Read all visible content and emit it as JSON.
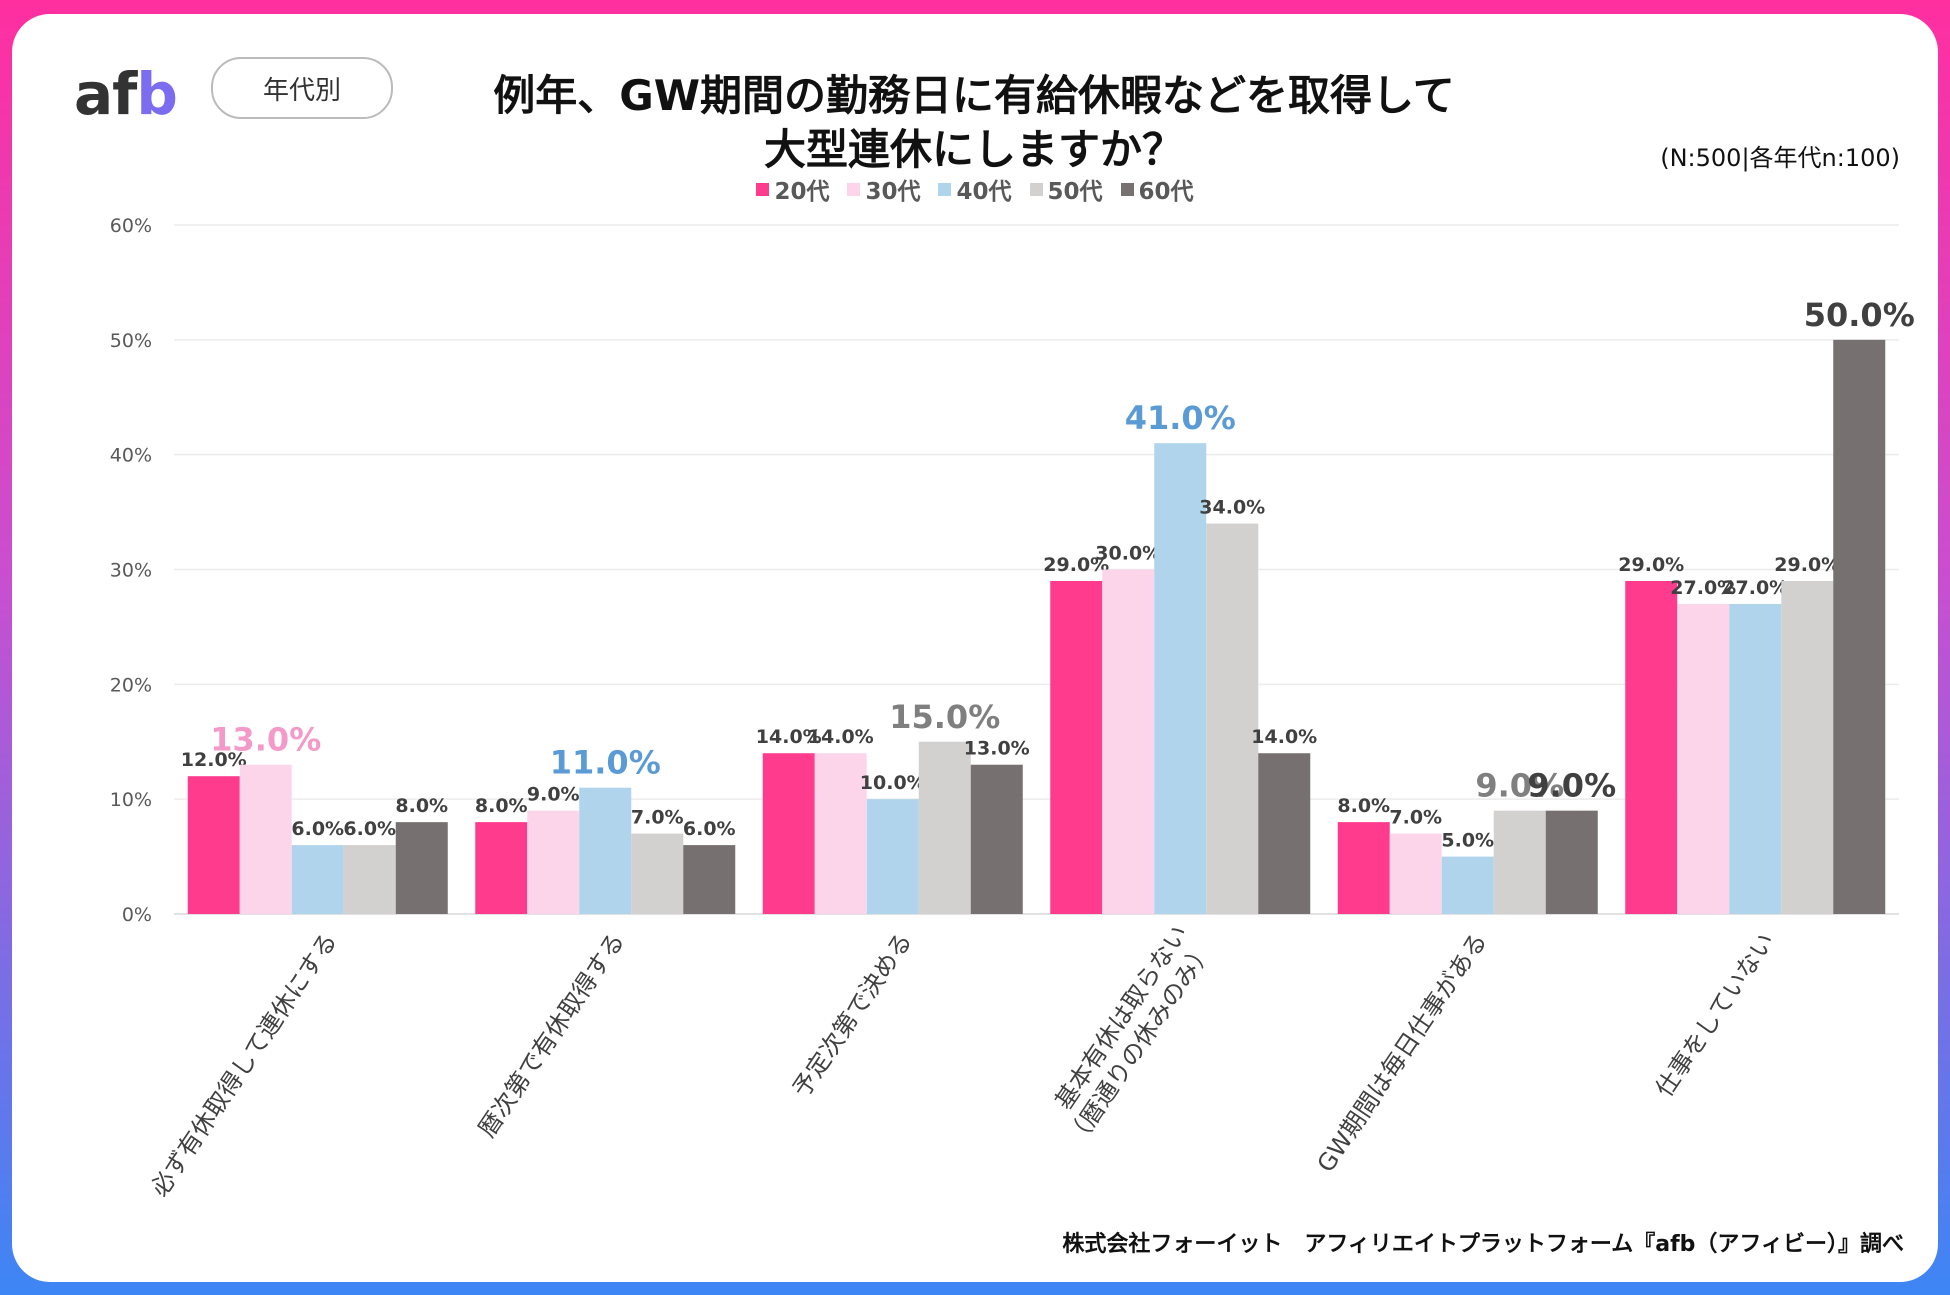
{
  "brand": {
    "logo_text": "afb"
  },
  "header": {
    "tag": "年代別",
    "title_line1": "例年、GW期間の勤務日に有給休暇などを取得して",
    "title_line2": "大型連休にしますか？",
    "sample": "(N:500|各年代n:100)"
  },
  "footer": "株式会社フォーイット　アフィリエイトプラットフォーム『afb（アフィビー）』調べ",
  "chart_data": {
    "type": "bar",
    "categories": [
      [
        "必ず有休取得して連休にする"
      ],
      [
        "暦次第で有休取得する"
      ],
      [
        "予定次第で決める"
      ],
      [
        "基本有休は取らない",
        "（暦通りの休みのみ）"
      ],
      [
        "GW期間は毎日仕事がある"
      ],
      [
        "仕事をしていない"
      ]
    ],
    "series": [
      {
        "name": "20代",
        "color": "#ff3b8d",
        "values": [
          12.0,
          8.0,
          14.0,
          29.0,
          8.0,
          29.0
        ]
      },
      {
        "name": "30代",
        "color": "#fdd5eb",
        "values": [
          13.0,
          9.0,
          14.0,
          30.0,
          7.0,
          27.0
        ]
      },
      {
        "name": "40代",
        "color": "#b0d4ec",
        "values": [
          6.0,
          11.0,
          10.0,
          41.0,
          5.0,
          27.0
        ]
      },
      {
        "name": "50代",
        "color": "#d3d0d0",
        "values": [
          6.0,
          7.0,
          15.0,
          34.0,
          9.0,
          29.0
        ]
      },
      {
        "name": "60代",
        "color": "#767170",
        "values": [
          8.0,
          6.0,
          13.0,
          14.0,
          9.0,
          50.0
        ]
      }
    ],
    "highlights": [
      {
        "category": 0,
        "series": 1,
        "color": "#f49ac8"
      },
      {
        "category": 1,
        "series": 2,
        "color": "#5b9bd5"
      },
      {
        "category": 2,
        "series": 3,
        "color": "#7f7f7f"
      },
      {
        "category": 3,
        "series": 2,
        "color": "#5b9bd5"
      },
      {
        "category": 4,
        "series": 3,
        "color": "#7f7f7f"
      },
      {
        "category": 4,
        "series": 4,
        "color": "#404040"
      },
      {
        "category": 5,
        "series": 4,
        "color": "#404040"
      }
    ],
    "yticks": [
      "0%",
      "10%",
      "20%",
      "30%",
      "40%",
      "50%",
      "60%"
    ],
    "ylim": [
      0,
      60
    ],
    "grid": true,
    "legend_position": "top"
  }
}
